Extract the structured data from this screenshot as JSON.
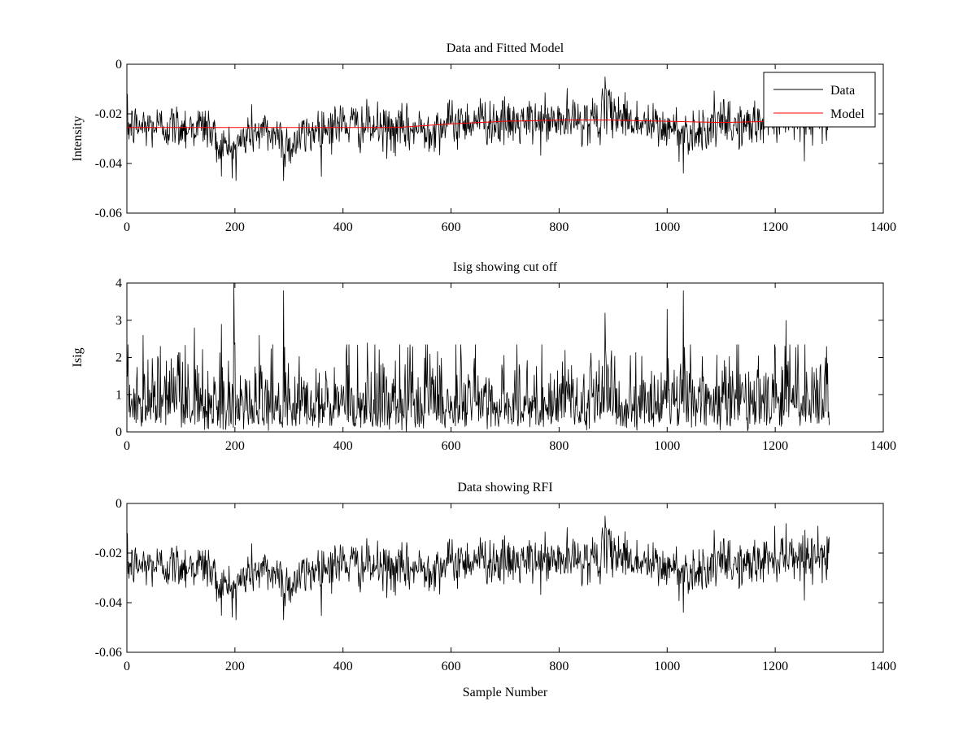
{
  "chart_data": [
    {
      "type": "line",
      "title": "Data and Fitted Model",
      "xlabel": "",
      "ylabel": "Intensity",
      "xlim": [
        0,
        1400
      ],
      "ylim": [
        -0.06,
        0
      ],
      "xticks": [
        0,
        200,
        400,
        600,
        800,
        1000,
        1200,
        1400
      ],
      "yticks": [
        0,
        -0.02,
        -0.04,
        -0.06
      ],
      "xtick_labels": [
        "0",
        "200",
        "400",
        "600",
        "800",
        "1000",
        "1200",
        "1400"
      ],
      "ytick_labels": [
        "0",
        "-0.02",
        "-0.04",
        "-0.06"
      ],
      "grid": false,
      "legend": "top-right",
      "series": [
        {
          "name": "Data",
          "color": "#000000",
          "n_samples": 1300,
          "x_range": [
            1,
            1300
          ],
          "mean": -0.024,
          "baseline_profile": {
            "x": [
              0,
              150,
              170,
              200,
              230,
              280,
              300,
              350,
              400,
              500,
              550,
              600,
              650,
              700,
              800,
              870,
              890,
              950,
              1000,
              1050,
              1100,
              1150,
              1200,
              1250,
              1300
            ],
            "y": [
              -0.025,
              -0.025,
              -0.033,
              -0.034,
              -0.027,
              -0.028,
              -0.033,
              -0.026,
              -0.024,
              -0.027,
              -0.026,
              -0.024,
              -0.022,
              -0.024,
              -0.023,
              -0.022,
              -0.018,
              -0.024,
              -0.026,
              -0.027,
              -0.024,
              -0.025,
              -0.021,
              -0.021,
              -0.021
            ]
          },
          "extremes": [
            {
              "x": 202,
              "y": -0.047
            },
            {
              "x": 290,
              "y": -0.047
            },
            {
              "x": 885,
              "y": -0.005
            },
            {
              "x": 1030,
              "y": -0.044
            }
          ]
        },
        {
          "name": "Model",
          "color": "#ff0000",
          "x": [
            0,
            200,
            400,
            500,
            600,
            700,
            800,
            900,
            1000,
            1100,
            1200,
            1300
          ],
          "y": [
            -0.0255,
            -0.0255,
            -0.0255,
            -0.0255,
            -0.024,
            -0.023,
            -0.0225,
            -0.0225,
            -0.023,
            -0.0235,
            -0.023,
            -0.023
          ]
        }
      ]
    },
    {
      "type": "line",
      "title": "Isig showing cut off",
      "xlabel": "",
      "ylabel": "Isig",
      "xlim": [
        0,
        1400
      ],
      "ylim": [
        0,
        4
      ],
      "xticks": [
        0,
        200,
        400,
        600,
        800,
        1000,
        1200,
        1400
      ],
      "yticks": [
        0,
        1,
        2,
        3,
        4
      ],
      "xtick_labels": [
        "0",
        "200",
        "400",
        "600",
        "800",
        "1000",
        "1200",
        "1400"
      ],
      "ytick_labels": [
        "0",
        "1",
        "2",
        "3",
        "4"
      ],
      "grid": false,
      "series": [
        {
          "color": "#000000",
          "n_samples": 1300,
          "x_range": [
            1,
            1300
          ],
          "mean": 0.8,
          "peaks": [
            {
              "x": 30,
              "y": 2.6
            },
            {
              "x": 125,
              "y": 2.8
            },
            {
              "x": 175,
              "y": 2.9
            },
            {
              "x": 198,
              "y": 4.0
            },
            {
              "x": 245,
              "y": 2.6
            },
            {
              "x": 290,
              "y": 3.8
            },
            {
              "x": 445,
              "y": 2.4
            },
            {
              "x": 885,
              "y": 3.2
            },
            {
              "x": 1000,
              "y": 3.3
            },
            {
              "x": 1030,
              "y": 3.8
            },
            {
              "x": 1220,
              "y": 3.0
            },
            {
              "x": 1295,
              "y": 2.3
            }
          ]
        }
      ]
    },
    {
      "type": "line",
      "title": "Data showing RFI",
      "xlabel": "Sample Number",
      "ylabel": "",
      "xlim": [
        0,
        1400
      ],
      "ylim": [
        -0.06,
        0
      ],
      "xticks": [
        0,
        200,
        400,
        600,
        800,
        1000,
        1200,
        1400
      ],
      "yticks": [
        0,
        -0.02,
        -0.04,
        -0.06
      ],
      "xtick_labels": [
        "0",
        "200",
        "400",
        "600",
        "800",
        "1000",
        "1200",
        "1400"
      ],
      "ytick_labels": [
        "0",
        "-0.02",
        "-0.04",
        "-0.06"
      ],
      "grid": false,
      "series": [
        {
          "color": "#000000",
          "n_samples": 1300,
          "x_range": [
            1,
            1300
          ],
          "mean": -0.024,
          "baseline_profile": {
            "x": [
              0,
              150,
              170,
              200,
              230,
              280,
              300,
              350,
              400,
              500,
              550,
              600,
              650,
              700,
              800,
              870,
              890,
              950,
              1000,
              1050,
              1100,
              1150,
              1200,
              1250,
              1300
            ],
            "y": [
              -0.025,
              -0.025,
              -0.033,
              -0.034,
              -0.027,
              -0.028,
              -0.033,
              -0.026,
              -0.024,
              -0.027,
              -0.026,
              -0.024,
              -0.022,
              -0.024,
              -0.023,
              -0.022,
              -0.018,
              -0.024,
              -0.026,
              -0.027,
              -0.024,
              -0.025,
              -0.021,
              -0.021,
              -0.021
            ]
          },
          "extremes": [
            {
              "x": 202,
              "y": -0.047
            },
            {
              "x": 290,
              "y": -0.047
            },
            {
              "x": 885,
              "y": -0.005
            },
            {
              "x": 1030,
              "y": -0.044
            },
            {
              "x": 1220,
              "y": -0.008
            }
          ]
        }
      ]
    }
  ]
}
